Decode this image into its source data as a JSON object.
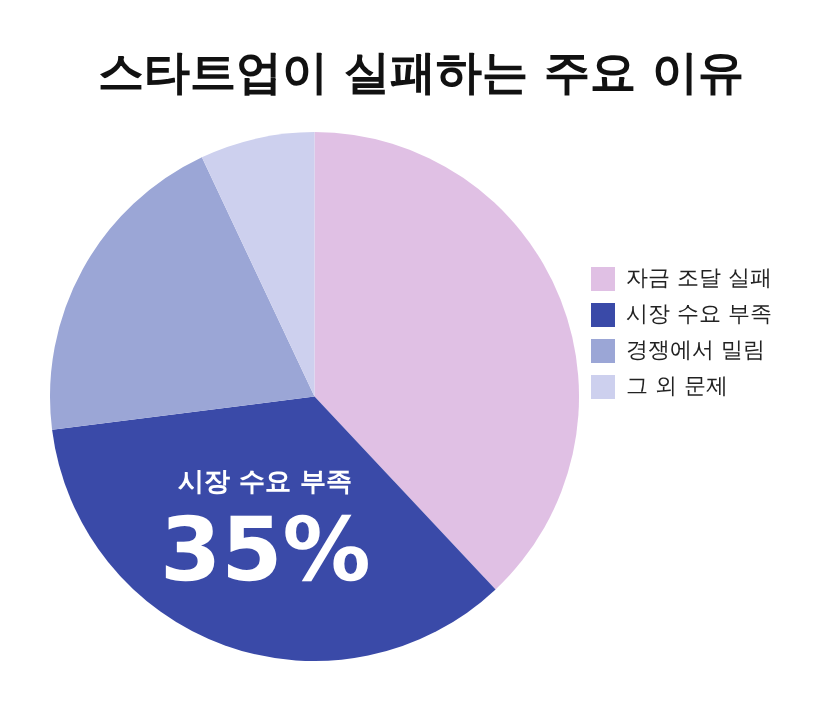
{
  "chart_data": {
    "type": "pie",
    "title": "스타트업이 실패하는 주요 이유",
    "categories": [
      "자금 조달 실패",
      "시장 수요 부족",
      "경쟁에서 밀림",
      "그 외 문제"
    ],
    "values": [
      38,
      35,
      20,
      7
    ],
    "colors": [
      "#e0c0e4",
      "#3a4aa8",
      "#9ba6d6",
      "#cdd0ee"
    ],
    "value_labels": [
      null,
      "35%",
      null,
      null
    ],
    "legend": "right"
  }
}
